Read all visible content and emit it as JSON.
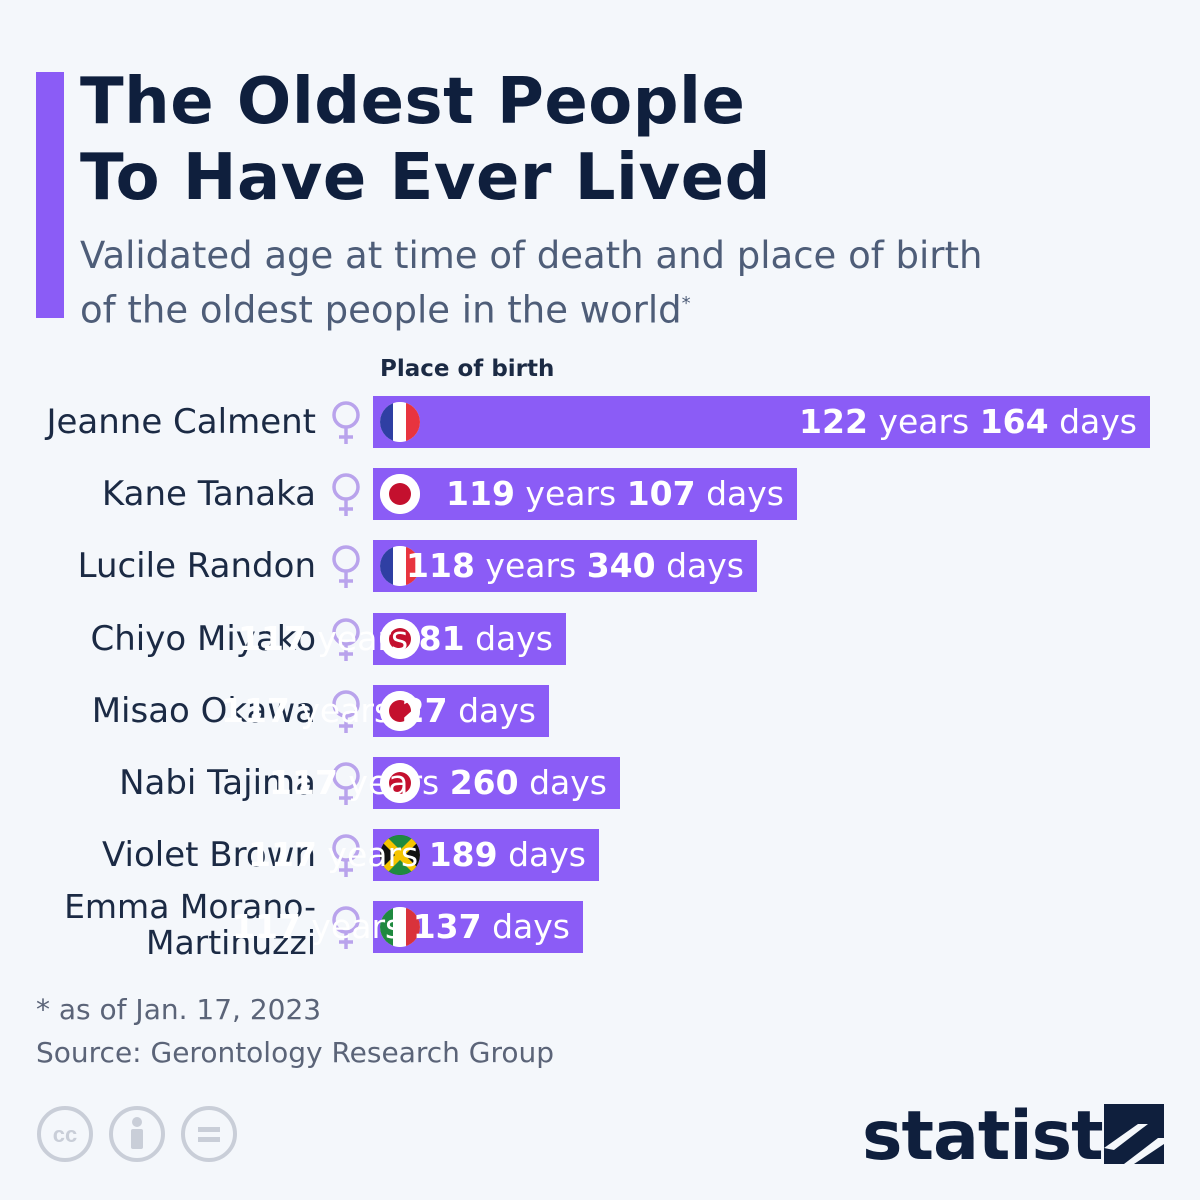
{
  "header": {
    "title_line1": "The Oldest People",
    "title_line2": "To Have Ever Lived",
    "subtitle_line1": "Validated age at time of death and place of birth",
    "subtitle_line2": "of the oldest people in the world",
    "subtitle_marker": "*"
  },
  "chart_data": {
    "type": "bar",
    "orientation": "horizontal",
    "column_header": "Place of birth",
    "value_unit_years": "years",
    "value_unit_days": "days",
    "rows": [
      {
        "name": "Jeanne Calment",
        "sex": "female",
        "flag": "france",
        "years": 122,
        "days": 164
      },
      {
        "name": "Kane Tanaka",
        "sex": "female",
        "flag": "japan",
        "years": 119,
        "days": 107
      },
      {
        "name": "Lucile Randon",
        "sex": "female",
        "flag": "france",
        "years": 118,
        "days": 340
      },
      {
        "name": "Chiyo Miyako",
        "sex": "female",
        "flag": "japan",
        "years": 117,
        "days": 81
      },
      {
        "name": "Misao Okawa",
        "sex": "female",
        "flag": "japan",
        "years": 117,
        "days": 27
      },
      {
        "name": "Nabi Tajima",
        "sex": "female",
        "flag": "japan",
        "years": 117,
        "days": 260
      },
      {
        "name": "Violet Brown",
        "sex": "female",
        "flag": "jamaica",
        "years": 117,
        "days": 189
      },
      {
        "name": "Emma Morano-Martinuzzi",
        "name_line1": "Emma Morano-",
        "name_line2": "Martinuzzi",
        "sex": "female",
        "flag": "italy",
        "years": 117,
        "days": 137
      }
    ]
  },
  "footer": {
    "footnote": "* as of Jan. 17, 2023",
    "source": "Source: Gerontology Research Group",
    "brand": "statista",
    "license_icons": [
      "creative-commons-icon",
      "attribution-icon",
      "no-derivatives-icon"
    ]
  },
  "colors": {
    "accent": "#8b5cf6",
    "title": "#0f1f3d",
    "background": "#f4f7fb",
    "female_symbol": "#b9a3ec"
  }
}
